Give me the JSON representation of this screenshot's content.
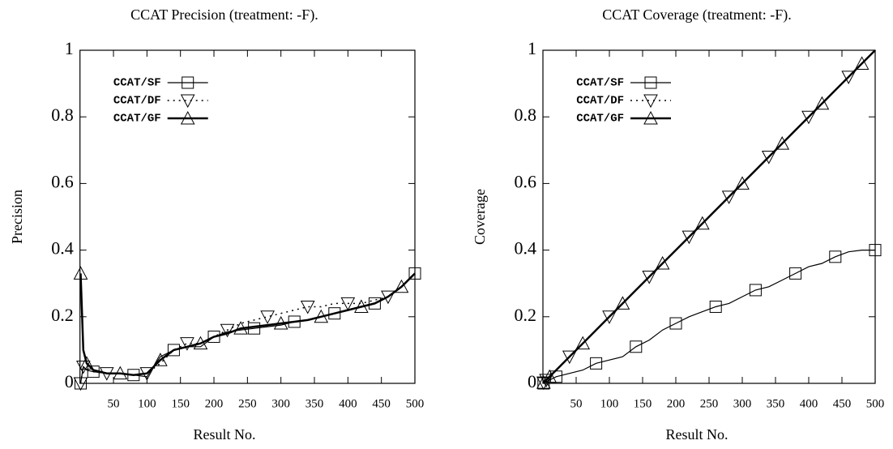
{
  "chart_data": [
    {
      "type": "line",
      "title": "CCAT Precision (treatment: -F).",
      "xlabel": "Result No.",
      "ylabel": "Precision",
      "x": [
        1,
        5,
        10,
        20,
        40,
        60,
        80,
        100,
        120,
        140,
        160,
        180,
        200,
        220,
        240,
        260,
        280,
        300,
        320,
        340,
        360,
        380,
        400,
        420,
        440,
        460,
        480,
        500
      ],
      "xlim": [
        0,
        500
      ],
      "ylim": [
        0,
        1
      ],
      "xticks": [
        50,
        100,
        150,
        200,
        250,
        300,
        350,
        400,
        450,
        500
      ],
      "yticks": [
        0,
        0.2,
        0.4,
        0.6,
        0.8,
        1
      ],
      "legend": "upper-left",
      "series": [
        {
          "name": "CCAT/SF",
          "color": "#000000",
          "marker": "square",
          "dash": "solid",
          "width": 1.2,
          "values": [
            0,
            0.05,
            0.04,
            0.035,
            0.03,
            0.03,
            0.025,
            0.02,
            0.08,
            0.1,
            0.11,
            0.11,
            0.14,
            0.155,
            0.16,
            0.165,
            0.17,
            0.175,
            0.185,
            0.19,
            0.2,
            0.21,
            0.22,
            0.23,
            0.24,
            0.26,
            0.29,
            0.33
          ]
        },
        {
          "name": "CCAT/DF",
          "color": "#000000",
          "marker": "triangle-down",
          "dash": "dotted",
          "width": 1.5,
          "values": [
            0,
            0.05,
            0.04,
            0.035,
            0.03,
            0.03,
            0.025,
            0.03,
            0.06,
            0.1,
            0.12,
            0.12,
            0.14,
            0.16,
            0.18,
            0.19,
            0.2,
            0.21,
            0.22,
            0.23,
            0.23,
            0.24,
            0.24,
            0.24,
            0.25,
            0.26,
            0.29,
            0.33
          ]
        },
        {
          "name": "CCAT/GF",
          "color": "#000000",
          "marker": "triangle-up",
          "dash": "solid",
          "width": 2.5,
          "values": [
            0.33,
            0.1,
            0.06,
            0.04,
            0.03,
            0.03,
            0.025,
            0.03,
            0.07,
            0.1,
            0.11,
            0.12,
            0.14,
            0.15,
            0.165,
            0.17,
            0.175,
            0.18,
            0.185,
            0.19,
            0.2,
            0.21,
            0.22,
            0.23,
            0.24,
            0.26,
            0.29,
            0.33
          ]
        }
      ]
    },
    {
      "type": "line",
      "title": "CCAT Coverage (treatment: -F).",
      "xlabel": "Result No.",
      "ylabel": "Coverage",
      "x": [
        1,
        5,
        10,
        20,
        40,
        60,
        80,
        100,
        120,
        140,
        160,
        180,
        200,
        220,
        240,
        260,
        280,
        300,
        320,
        340,
        360,
        380,
        400,
        420,
        440,
        460,
        480,
        500
      ],
      "xlim": [
        0,
        500
      ],
      "ylim": [
        0,
        1
      ],
      "xticks": [
        50,
        100,
        150,
        200,
        250,
        300,
        350,
        400,
        450,
        500
      ],
      "yticks": [
        0,
        0.2,
        0.4,
        0.6,
        0.8,
        1
      ],
      "legend": "upper-left",
      "series": [
        {
          "name": "CCAT/SF",
          "color": "#000000",
          "marker": "square",
          "dash": "solid",
          "width": 1.2,
          "values": [
            0,
            0.005,
            0.01,
            0.02,
            0.03,
            0.04,
            0.06,
            0.07,
            0.08,
            0.11,
            0.13,
            0.16,
            0.18,
            0.2,
            0.215,
            0.23,
            0.24,
            0.26,
            0.28,
            0.29,
            0.31,
            0.33,
            0.35,
            0.36,
            0.38,
            0.395,
            0.4,
            0.4
          ]
        },
        {
          "name": "CCAT/DF",
          "color": "#000000",
          "marker": "triangle-down",
          "dash": "dotted",
          "width": 1.5,
          "values": [
            0.002,
            0.01,
            0.02,
            0.04,
            0.08,
            0.12,
            0.16,
            0.2,
            0.24,
            0.28,
            0.32,
            0.36,
            0.4,
            0.44,
            0.48,
            0.52,
            0.56,
            0.6,
            0.64,
            0.68,
            0.72,
            0.76,
            0.8,
            0.84,
            0.88,
            0.92,
            0.96,
            1
          ]
        },
        {
          "name": "CCAT/GF",
          "color": "#000000",
          "marker": "triangle-up",
          "dash": "solid",
          "width": 2.5,
          "values": [
            0.002,
            0.01,
            0.02,
            0.04,
            0.08,
            0.12,
            0.16,
            0.2,
            0.24,
            0.28,
            0.32,
            0.36,
            0.4,
            0.44,
            0.48,
            0.52,
            0.56,
            0.6,
            0.64,
            0.68,
            0.72,
            0.76,
            0.8,
            0.84,
            0.88,
            0.92,
            0.96,
            1
          ]
        }
      ]
    }
  ]
}
